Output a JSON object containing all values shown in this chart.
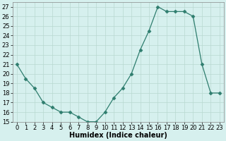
{
  "title": "",
  "xlabel": "Humidex (Indice chaleur)",
  "x": [
    0,
    1,
    2,
    3,
    4,
    5,
    6,
    7,
    8,
    9,
    10,
    11,
    12,
    13,
    14,
    15,
    16,
    17,
    18,
    19,
    20,
    21,
    22,
    23
  ],
  "y": [
    21,
    19.5,
    18.5,
    17,
    16.5,
    16,
    16,
    15.5,
    15,
    15,
    16,
    17.5,
    18.5,
    20,
    22.5,
    24.5,
    27,
    26.5,
    26.5,
    26.5,
    26,
    21,
    18,
    18
  ],
  "xlim": [
    -0.5,
    23.5
  ],
  "ylim": [
    15,
    27.5
  ],
  "yticks": [
    15,
    16,
    17,
    18,
    19,
    20,
    21,
    22,
    23,
    24,
    25,
    26,
    27
  ],
  "xticks": [
    0,
    1,
    2,
    3,
    4,
    5,
    6,
    7,
    8,
    9,
    10,
    11,
    12,
    13,
    14,
    15,
    16,
    17,
    18,
    19,
    20,
    21,
    22,
    23
  ],
  "line_color": "#2e7d6e",
  "marker": "D",
  "marker_size": 2.5,
  "bg_color": "#d6f0ee",
  "grid_color": "#b8d8d0",
  "label_fontsize": 7,
  "tick_fontsize": 6
}
